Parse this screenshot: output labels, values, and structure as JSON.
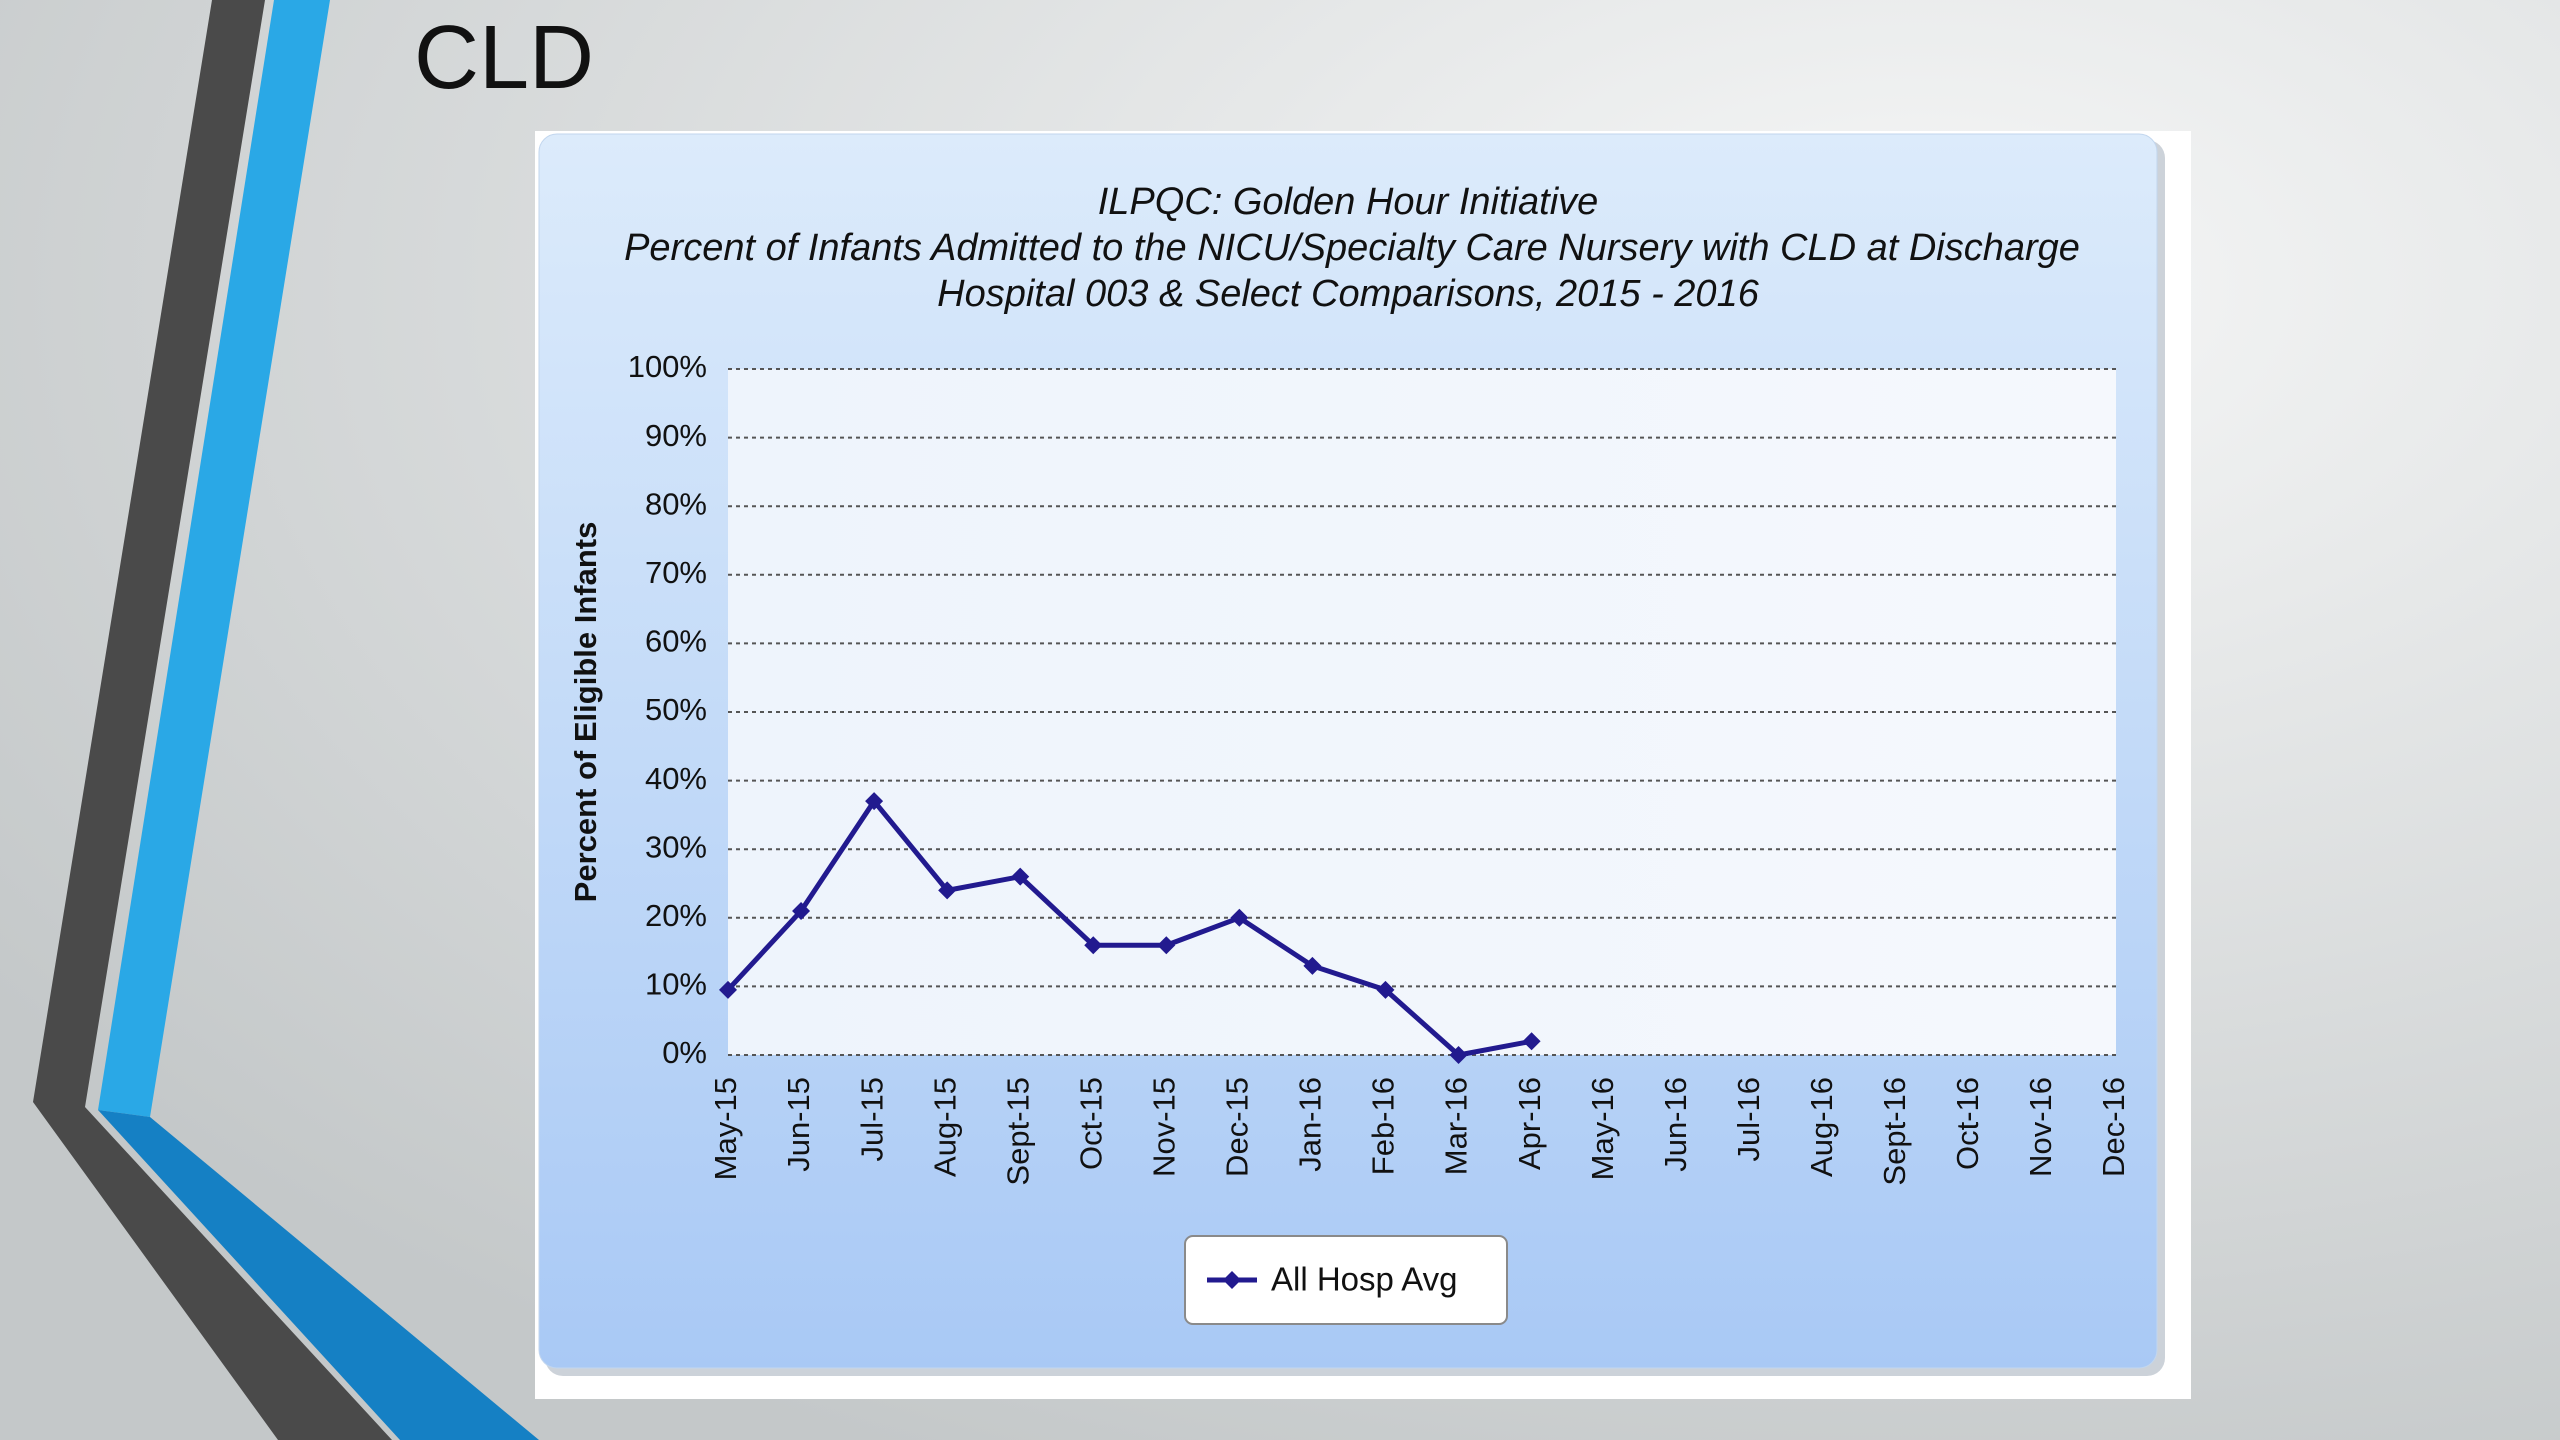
{
  "slide_title": "CLD",
  "chart_data": {
    "type": "line",
    "title": [
      "ILPQC: Golden Hour Initiative",
      "Percent of Infants Admitted to the NICU/Specialty Care Nursery with CLD at Discharge",
      "Hospital 003 & Select Comparisons, 2015 - 2016"
    ],
    "y_label": "Percent of Eligible Infants",
    "categories": [
      "May-15",
      "Jun-15",
      "Jul-15",
      "Aug-15",
      "Sept-15",
      "Oct-15",
      "Nov-15",
      "Dec-15",
      "Jan-16",
      "Feb-16",
      "Mar-16",
      "Apr-16",
      "May-16",
      "Jun-16",
      "Jul-16",
      "Aug-16",
      "Sept-16",
      "Oct-16",
      "Nov-16",
      "Dec-16"
    ],
    "series": [
      {
        "name": "All Hosp Avg",
        "color": "#221a8f",
        "values": [
          9.5,
          21,
          37,
          24,
          26,
          16,
          16,
          20,
          13,
          9.5,
          0,
          2,
          null,
          null,
          null,
          null,
          null,
          null,
          null,
          null
        ]
      }
    ],
    "ylim": [
      0,
      100
    ],
    "yticks": [
      {
        "value": 0,
        "label": "0%"
      },
      {
        "value": 10,
        "label": "10%"
      },
      {
        "value": 20,
        "label": "20%"
      },
      {
        "value": 30,
        "label": "30%"
      },
      {
        "value": 40,
        "label": "40%"
      },
      {
        "value": 50,
        "label": "50%"
      },
      {
        "value": 60,
        "label": "60%"
      },
      {
        "value": 70,
        "label": "70%"
      },
      {
        "value": 80,
        "label": "80%"
      },
      {
        "value": 90,
        "label": "90%"
      },
      {
        "value": 100,
        "label": "100%"
      }
    ],
    "grid": true,
    "legend": "bottom"
  }
}
